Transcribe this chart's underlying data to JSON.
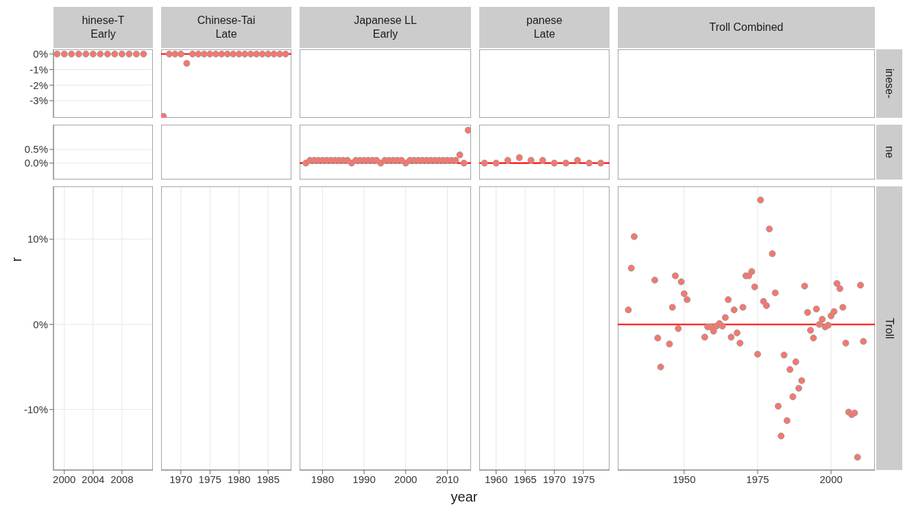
{
  "chart_data": [
    {
      "type": "scatter",
      "title": "hinese-T\nEarly",
      "xlim": [
        1998.5,
        2012.3
      ],
      "ylim": [
        -4.1,
        0.3
      ],
      "yticks": [
        {
          "value": 0,
          "label": "0%"
        },
        {
          "value": -1,
          "label": "-1%"
        },
        {
          "value": -2,
          "label": "-2%"
        },
        {
          "value": -3,
          "label": "-3%"
        }
      ],
      "tick_labels": "y",
      "grid": true,
      "marker": "circle",
      "series": [
        {
          "color": "#f8766d",
          "x": [
            1999,
            2000,
            2001,
            2002,
            2003,
            2004,
            2005,
            2006,
            2007,
            2008,
            2009,
            2010,
            2011
          ],
          "values": [
            0,
            0,
            0,
            0,
            0,
            0,
            0,
            0,
            0,
            0,
            0,
            0,
            0
          ]
        }
      ]
    },
    {
      "type": "scatter",
      "title": "Chinese-Tai\nLate",
      "xlim": [
        1966.6,
        1989
      ],
      "ylim": [
        -4.1,
        0.3
      ],
      "tick_labels": false,
      "grid": true,
      "marker": "circle",
      "ref_lines": [
        {
          "axis": "y",
          "value": 0,
          "color": "#ff0000"
        }
      ],
      "series": [
        {
          "color": "#f8766d",
          "x": [
            1967,
            1968,
            1969,
            1970,
            1971,
            1972,
            1973,
            1974,
            1975,
            1976,
            1977,
            1978,
            1979,
            1980,
            1981,
            1982,
            1983,
            1984,
            1985,
            1986,
            1987,
            1988
          ],
          "values": [
            -4.0,
            0,
            0,
            0,
            -0.6,
            0,
            0,
            0,
            0,
            0,
            0,
            0,
            0,
            0,
            0,
            0,
            0,
            0,
            0,
            0,
            0,
            0
          ]
        }
      ]
    },
    {
      "type": "scatter",
      "title": "Japanese LL\nEarly",
      "xlim": [
        1974.5,
        2015.7
      ],
      "ylim": [
        -4.1,
        0.3
      ],
      "tick_labels": false,
      "grid": true
    },
    {
      "type": "scatter",
      "title": "panese\nLate",
      "xlim": [
        1957.1,
        1979.5
      ],
      "ylim": [
        -4.1,
        0.3
      ],
      "tick_labels": false,
      "grid": true
    },
    {
      "type": "scatter",
      "title": "Troll Combined",
      "y2label": "inese-",
      "xlim": [
        1927.4,
        2014.9
      ],
      "ylim": [
        -4.1,
        0.3
      ],
      "tick_labels": false,
      "grid": true
    },
    {
      "type": "scatter",
      "xlim": [
        1998.5,
        2012.3
      ],
      "ylim": [
        -0.6,
        1.4
      ],
      "yticks": [
        {
          "value": 0,
          "label": "0.0%"
        },
        {
          "value": 0.5,
          "label": "0.5%"
        }
      ],
      "tick_labels": "y",
      "grid": true
    },
    {
      "type": "scatter",
      "xlim": [
        1966.6,
        1989
      ],
      "ylim": [
        -0.6,
        1.4
      ],
      "tick_labels": false,
      "grid": true
    },
    {
      "type": "scatter",
      "xlim": [
        1974.5,
        2015.7
      ],
      "ylim": [
        -0.6,
        1.4
      ],
      "tick_labels": false,
      "grid": true,
      "marker": "circle",
      "ref_lines": [
        {
          "axis": "y",
          "value": 0,
          "color": "#ff0000"
        }
      ],
      "series": [
        {
          "color": "#f8766d",
          "x": [
            1976,
            1977,
            1978,
            1979,
            1980,
            1981,
            1982,
            1983,
            1984,
            1985,
            1986,
            1987,
            1988,
            1989,
            1990,
            1991,
            1992,
            1993,
            1994,
            1995,
            1996,
            1997,
            1998,
            1999,
            2000,
            2001,
            2002,
            2003,
            2004,
            2005,
            2006,
            2007,
            2008,
            2009,
            2010,
            2011,
            2012,
            2013,
            2014,
            2015
          ],
          "values": [
            0.0,
            0.1,
            0.1,
            0.1,
            0.1,
            0.1,
            0.1,
            0.1,
            0.1,
            0.1,
            0.1,
            0.0,
            0.1,
            0.1,
            0.1,
            0.1,
            0.1,
            0.1,
            0.0,
            0.1,
            0.1,
            0.1,
            0.1,
            0.1,
            0.0,
            0.1,
            0.1,
            0.1,
            0.1,
            0.1,
            0.1,
            0.1,
            0.1,
            0.1,
            0.1,
            0.1,
            0.1,
            0.3,
            0.0,
            1.2
          ]
        }
      ]
    },
    {
      "type": "scatter",
      "xlim": [
        1957.1,
        1979.5
      ],
      "ylim": [
        -0.6,
        1.4
      ],
      "tick_labels": false,
      "grid": true,
      "marker": "circle",
      "ref_lines": [
        {
          "axis": "y",
          "value": 0,
          "color": "#ff0000"
        }
      ],
      "series": [
        {
          "color": "#f8766d",
          "x": [
            1958,
            1960,
            1962,
            1964,
            1966,
            1968,
            1970,
            1972,
            1974,
            1976,
            1978
          ],
          "values": [
            0.0,
            0.0,
            0.1,
            0.2,
            0.1,
            0.1,
            0.0,
            0.0,
            0.1,
            0.0,
            0.0
          ]
        }
      ]
    },
    {
      "type": "scatter",
      "y2label": "ne",
      "xlim": [
        1927.4,
        2014.9
      ],
      "ylim": [
        -0.6,
        1.4
      ],
      "tick_labels": false,
      "grid": true
    },
    {
      "type": "scatter",
      "ylabel": "r",
      "xlim": [
        1998.5,
        2012.3
      ],
      "xticks": [
        2000,
        2004,
        2008
      ],
      "ylim": [
        -17.1,
        16.2
      ],
      "yticks": [
        {
          "value": -10,
          "label": "-10%"
        },
        {
          "value": 0,
          "label": "0%"
        },
        {
          "value": 10,
          "label": "10%"
        }
      ],
      "grid": true
    },
    {
      "type": "scatter",
      "xlim": [
        1966.6,
        1989
      ],
      "xticks": [
        1970,
        1975,
        1980,
        1985
      ],
      "ylim": [
        -17.1,
        16.2
      ],
      "tick_labels": "x",
      "grid": true
    },
    {
      "type": "scatter",
      "xlabel": "year",
      "xlim": [
        1974.5,
        2015.7
      ],
      "xticks": [
        1980,
        1990,
        2000,
        2010
      ],
      "ylim": [
        -17.1,
        16.2
      ],
      "tick_labels": "x",
      "grid": true
    },
    {
      "type": "scatter",
      "xlim": [
        1957.1,
        1979.5
      ],
      "xticks": [
        1960,
        1965,
        1970,
        1975
      ],
      "ylim": [
        -17.1,
        16.2
      ],
      "tick_labels": "x",
      "grid": true
    },
    {
      "type": "scatter",
      "y2label": "Troll",
      "xlim": [
        1927.4,
        2014.9
      ],
      "xticks": [
        1950,
        1975,
        2000
      ],
      "ylim": [
        -17.1,
        16.2
      ],
      "tick_labels": "x",
      "grid": true,
      "marker": "circle",
      "ref_lines": [
        {
          "axis": "y",
          "value": 0,
          "color": "#ff0000"
        }
      ],
      "series": [
        {
          "color": "#f8766d",
          "x": [
            1931,
            1932,
            1933,
            1940,
            1941,
            1942,
            1945,
            1946,
            1947,
            1948,
            1949,
            1950,
            1951,
            1957,
            1958,
            1959,
            1960,
            1961,
            1962,
            1963,
            1964,
            1965,
            1966,
            1967,
            1968,
            1969,
            1970,
            1971,
            1972,
            1973,
            1974,
            1975,
            1976,
            1977,
            1978,
            1979,
            1980,
            1981,
            1982,
            1983,
            1984,
            1985,
            1986,
            1987,
            1988,
            1989,
            1990,
            1991,
            1992,
            1993,
            1994,
            1995,
            1996,
            1997,
            1998,
            1999,
            2000,
            2001,
            2002,
            2003,
            2004,
            2005,
            2006,
            2007,
            2008,
            2009,
            2010,
            2011
          ],
          "values": [
            1.7,
            6.6,
            10.3,
            5.2,
            -1.6,
            -5.0,
            -2.3,
            2.0,
            5.7,
            -0.5,
            5.0,
            3.6,
            2.9,
            -1.5,
            -0.3,
            -0.3,
            -0.8,
            -0.2,
            0.1,
            -0.2,
            0.8,
            2.9,
            -1.5,
            1.7,
            -1.0,
            -2.2,
            2.0,
            5.7,
            5.7,
            6.2,
            4.4,
            -3.5,
            14.6,
            2.7,
            2.2,
            11.2,
            8.3,
            3.7,
            -9.6,
            -13.1,
            -3.6,
            -11.3,
            -5.3,
            -8.5,
            -4.4,
            -7.5,
            -6.6,
            4.5,
            1.4,
            -0.7,
            -1.6,
            1.8,
            0.0,
            0.6,
            -0.3,
            -0.1,
            1.0,
            1.5,
            4.8,
            4.2,
            2.0,
            -2.2,
            -10.3,
            -10.6,
            -10.4,
            -15.6,
            4.6,
            -2.0
          ]
        }
      ]
    }
  ]
}
